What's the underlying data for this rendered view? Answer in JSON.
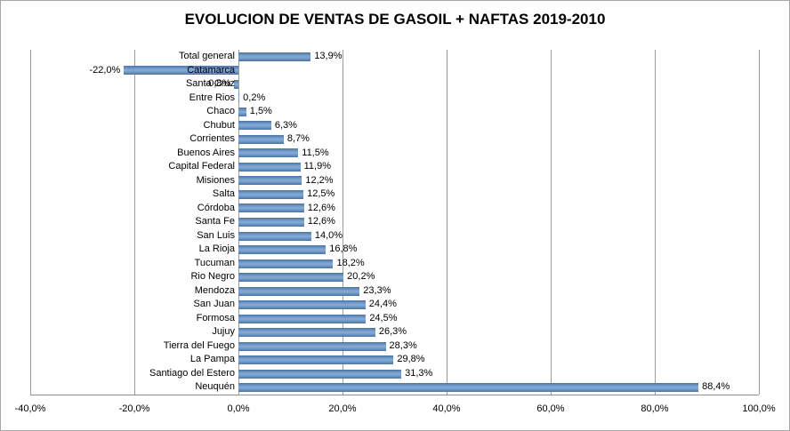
{
  "title": "EVOLUCION DE VENTAS DE GASOIL + NAFTAS 2019-2010",
  "chart_data": {
    "type": "bar",
    "orientation": "horizontal",
    "title": "EVOLUCION DE VENTAS DE GASOIL + NAFTAS 2019-2010",
    "xlabel": "",
    "ylabel": "",
    "grid": true,
    "legend": false,
    "xlim": [
      -40,
      100
    ],
    "x_tick_values": [
      -40,
      -20,
      0,
      20,
      40,
      60,
      80,
      100
    ],
    "x_tick_labels": [
      "-40,0%",
      "-20,0%",
      "0,0%",
      "20,0%",
      "40,0%",
      "60,0%",
      "80,0%",
      "100,0%"
    ],
    "bar_color": "#4f81bd",
    "gridline_color": "#9c9c9c",
    "categories": [
      "Total general",
      "Catamarca",
      "Santa Cruz",
      "Entre Rios",
      "Chaco",
      "Chubut",
      "Corrientes",
      "Buenos Aires",
      "Capital Federal",
      "Misiones",
      "Salta",
      "Córdoba",
      "Santa Fe",
      "San Luis",
      "La Rioja",
      "Tucuman",
      "Rio Negro",
      "Mendoza",
      "San Juan",
      "Formosa",
      "Jujuy",
      "Tierra del Fuego",
      "La Pampa",
      "Santiago del Estero",
      "Neuquén"
    ],
    "values": [
      13.9,
      -22.0,
      -0.8,
      0.2,
      1.5,
      6.3,
      8.7,
      11.5,
      11.9,
      12.2,
      12.5,
      12.6,
      12.6,
      14.0,
      16.8,
      18.2,
      20.2,
      23.3,
      24.4,
      24.5,
      26.3,
      28.3,
      29.8,
      31.3,
      88.4
    ],
    "value_labels": [
      "13,9%",
      "-22,0%",
      "-0,8%",
      "0,2%",
      "1,5%",
      "6,3%",
      "8,7%",
      "11,5%",
      "11,9%",
      "12,2%",
      "12,5%",
      "12,6%",
      "12,6%",
      "14,0%",
      "16,8%",
      "18,2%",
      "20,2%",
      "23,3%",
      "24,4%",
      "24,5%",
      "26,3%",
      "28,3%",
      "29,8%",
      "31,3%",
      "88,4%"
    ]
  }
}
